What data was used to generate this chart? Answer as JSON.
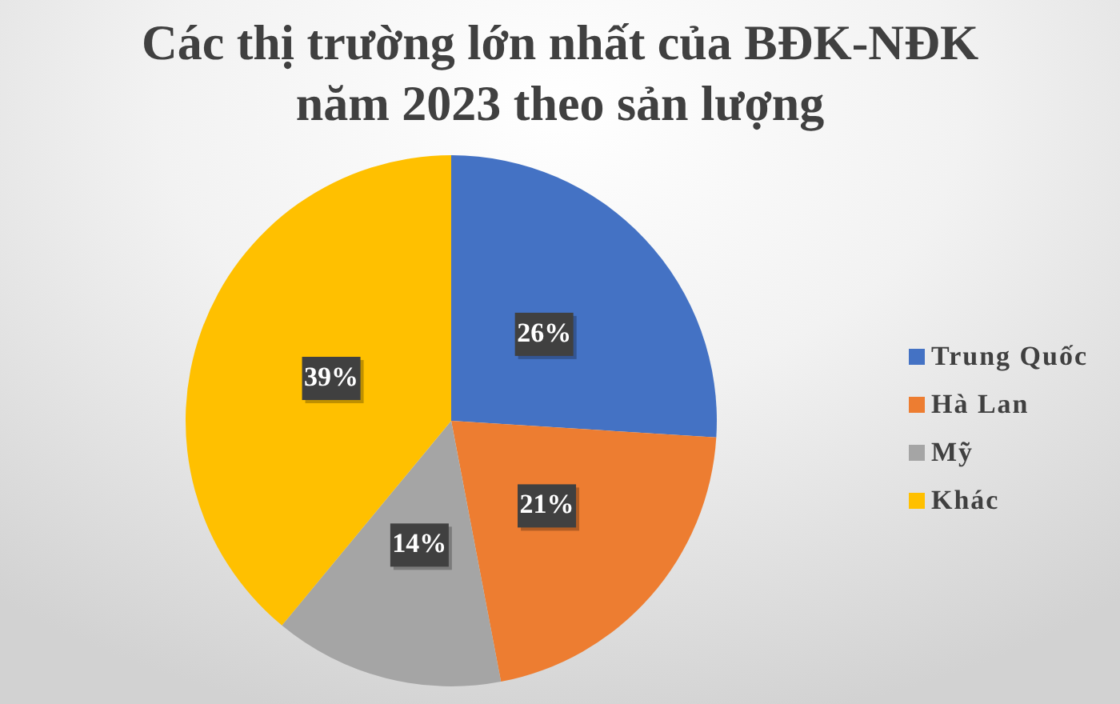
{
  "chart_data": {
    "type": "pie",
    "title": "Các thị trường lớn nhất của BĐK-NĐK năm 2023 theo sản lượng",
    "categories": [
      "Trung Quốc",
      "Hà Lan",
      "Mỹ",
      "Khác"
    ],
    "values": [
      26,
      21,
      14,
      39
    ],
    "colors": [
      "#4472c4",
      "#ed7d31",
      "#a5a5a5",
      "#ffc000"
    ],
    "value_labels": [
      "26%",
      "21%",
      "14%",
      "39%"
    ],
    "legend": "right"
  }
}
